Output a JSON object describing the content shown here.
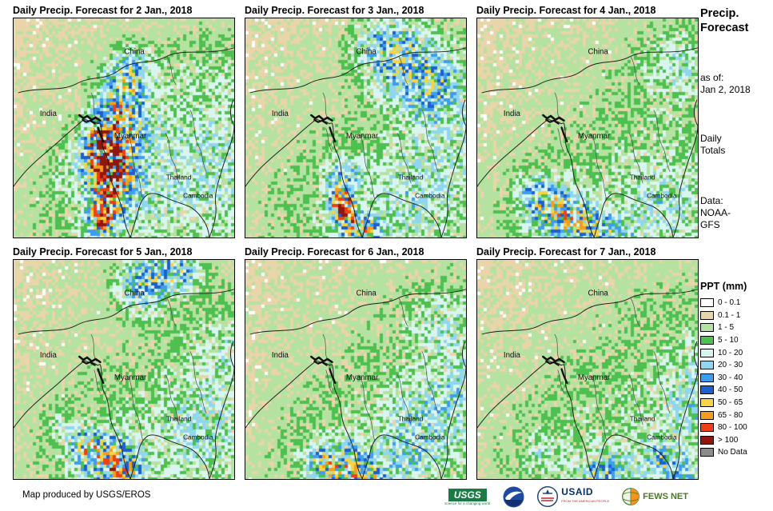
{
  "panels": [
    {
      "title": "Daily Precip. Forecast for 2 Jan., 2018"
    },
    {
      "title": "Daily Precip. Forecast for 3 Jan., 2018"
    },
    {
      "title": "Daily Precip. Forecast for 4 Jan., 2018"
    },
    {
      "title": "Daily Precip. Forecast for 5 Jan., 2018"
    },
    {
      "title": "Daily Precip. Forecast for 6 Jan., 2018"
    },
    {
      "title": "Daily Precip. Forecast for 7 Jan., 2018"
    }
  ],
  "map_labels": {
    "china": "China",
    "india": "India",
    "myanmar": "Myanmar",
    "thailand": "Thailand",
    "cambodia": "Cambodia"
  },
  "sidebar": {
    "title_lines": [
      "Precip.",
      "Forecast"
    ],
    "as_of_label": "as of:",
    "as_of_value": "Jan 2, 2018",
    "totals_lines": [
      "Daily",
      "Totals"
    ],
    "data_label": "Data:",
    "data_lines": [
      "NOAA-",
      "GFS"
    ]
  },
  "legend": {
    "title": "PPT (mm)",
    "entries": [
      {
        "label": "0 - 0.1",
        "color": "#ffffff"
      },
      {
        "label": "0.1 - 1",
        "color": "#e8d5a9"
      },
      {
        "label": "1 - 5",
        "color": "#b6e2a1"
      },
      {
        "label": "5 - 10",
        "color": "#4ec04f"
      },
      {
        "label": "10 - 20",
        "color": "#d9f5f0"
      },
      {
        "label": "20 - 30",
        "color": "#8fd6ee"
      },
      {
        "label": "30 - 40",
        "color": "#3f9df0"
      },
      {
        "label": "40 - 50",
        "color": "#1b60cf"
      },
      {
        "label": "50 - 65",
        "color": "#f7d441"
      },
      {
        "label": "65 - 80",
        "color": "#f79d1e"
      },
      {
        "label": "80 - 100",
        "color": "#ee4015"
      },
      {
        "label": "> 100",
        "color": "#8f1710"
      },
      {
        "label": "No Data",
        "color": "#8c8c8c"
      }
    ]
  },
  "footer": {
    "credit": "Map produced by USGS/EROS",
    "usgs_label": "USGS",
    "usgs_tagline": "science for a changing world",
    "usaid_label": "USAID",
    "usaid_tagline": "FROM THE AMERICAN PEOPLE",
    "fews_label": "FEWS NET"
  }
}
